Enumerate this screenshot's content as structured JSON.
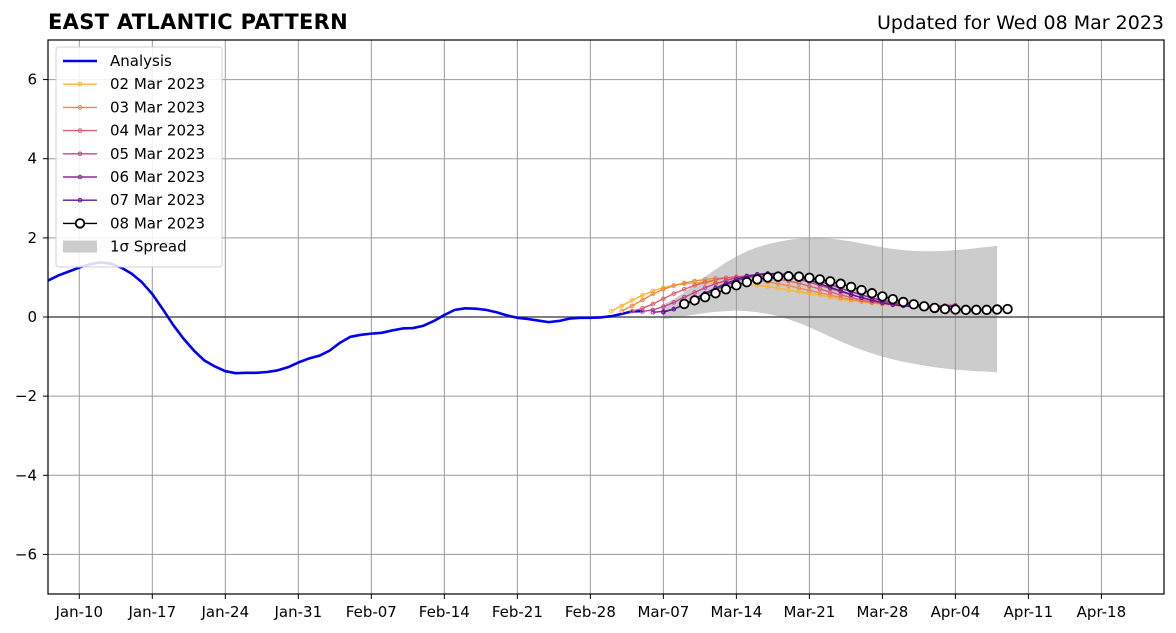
{
  "header": {
    "title": "EAST ATLANTIC PATTERN",
    "updated": "Updated for Wed 08 Mar 2023"
  },
  "chart_data": {
    "type": "line",
    "title": "EAST ATLANTIC PATTERN",
    "subtitle": "Updated for Wed 08 Mar 2023",
    "xlabel": "",
    "ylabel": "",
    "ylim": [
      -7,
      7
    ],
    "xlim": [
      "2023-01-07",
      "2023-04-24"
    ],
    "yticks": [
      -6,
      -4,
      -2,
      0,
      2,
      4,
      6
    ],
    "ytick_labels": [
      "−6",
      "−4",
      "−2",
      "0",
      "2",
      "4",
      "6"
    ],
    "xticks": [
      "2023-01-10",
      "2023-01-17",
      "2023-01-24",
      "2023-01-31",
      "2023-02-07",
      "2023-02-14",
      "2023-02-21",
      "2023-02-28",
      "2023-03-07",
      "2023-03-14",
      "2023-03-21",
      "2023-03-28",
      "2023-04-04",
      "2023-04-11",
      "2023-04-18"
    ],
    "xtick_labels": [
      "Jan-10",
      "Jan-17",
      "Jan-24",
      "Jan-31",
      "Feb-07",
      "Feb-14",
      "Feb-21",
      "Feb-28",
      "Mar-07",
      "Mar-14",
      "Mar-21",
      "Mar-28",
      "Apr-04",
      "Apr-11",
      "Apr-18"
    ],
    "grid": true,
    "legend_position": "top-left",
    "series": [
      {
        "name": "Analysis",
        "color": "#0000ee",
        "style": "thick-line",
        "start": "2023-01-07",
        "values": [
          0.92,
          1.05,
          1.15,
          1.25,
          1.33,
          1.38,
          1.35,
          1.25,
          1.1,
          0.88,
          0.58,
          0.2,
          -0.2,
          -0.55,
          -0.85,
          -1.1,
          -1.25,
          -1.37,
          -1.42,
          -1.41,
          -1.41,
          -1.39,
          -1.35,
          -1.27,
          -1.15,
          -1.05,
          -0.98,
          -0.85,
          -0.65,
          -0.5,
          -0.45,
          -0.42,
          -0.4,
          -0.34,
          -0.29,
          -0.28,
          -0.22,
          -0.1,
          0.05,
          0.18,
          0.22,
          0.21,
          0.18,
          0.12,
          0.04,
          -0.02,
          -0.05,
          -0.09,
          -0.13,
          -0.1,
          -0.04,
          -0.02,
          -0.02,
          -0.01,
          0.02,
          0.08,
          0.14,
          0.15
        ]
      },
      {
        "name": "02 Mar 2023",
        "color": "#f7b731",
        "style": "thin-marker",
        "start": "2023-03-02",
        "values": [
          0.15,
          0.28,
          0.42,
          0.55,
          0.66,
          0.74,
          0.8,
          0.84,
          0.86,
          0.87,
          0.87,
          0.86,
          0.84,
          0.82,
          0.8,
          0.77,
          0.73,
          0.68,
          0.64,
          0.6,
          0.55,
          0.5,
          0.45,
          0.42,
          0.38,
          0.35,
          0.32,
          0.3,
          0.28,
          0.27,
          0.26,
          0.25,
          0.25
        ]
      },
      {
        "name": "03 Mar 2023",
        "color": "#f08a4b",
        "style": "thin-marker",
        "start": "2023-03-03",
        "values": [
          0.15,
          0.28,
          0.43,
          0.58,
          0.7,
          0.79,
          0.86,
          0.91,
          0.95,
          0.98,
          0.99,
          0.98,
          0.96,
          0.93,
          0.89,
          0.84,
          0.79,
          0.73,
          0.67,
          0.61,
          0.55,
          0.49,
          0.44,
          0.4,
          0.36,
          0.33,
          0.3,
          0.28,
          0.27,
          0.26,
          0.26,
          0.27,
          0.27
        ]
      },
      {
        "name": "04 Mar 2023",
        "color": "#e0606e",
        "style": "thin-marker",
        "start": "2023-03-04",
        "values": [
          0.15,
          0.22,
          0.33,
          0.46,
          0.59,
          0.7,
          0.8,
          0.88,
          0.94,
          0.99,
          1.02,
          1.03,
          1.02,
          1.0,
          0.96,
          0.91,
          0.85,
          0.78,
          0.71,
          0.63,
          0.56,
          0.49,
          0.43,
          0.38,
          0.34,
          0.31,
          0.29,
          0.28,
          0.28,
          0.28,
          0.29,
          0.3
        ]
      },
      {
        "name": "05 Mar 2023",
        "color": "#c0448c",
        "style": "thin-marker",
        "start": "2023-03-05",
        "values": [
          0.14,
          0.18,
          0.26,
          0.37,
          0.5,
          0.62,
          0.74,
          0.84,
          0.92,
          0.99,
          1.04,
          1.07,
          1.07,
          1.05,
          1.01,
          0.95,
          0.88,
          0.8,
          0.72,
          0.64,
          0.56,
          0.49,
          0.43,
          0.38,
          0.34,
          0.31,
          0.29,
          0.28,
          0.28,
          0.29,
          0.3
        ]
      },
      {
        "name": "06 Mar 2023",
        "color": "#9a22a0",
        "style": "thin-marker",
        "start": "2023-03-06",
        "values": [
          0.12,
          0.14,
          0.2,
          0.3,
          0.42,
          0.56,
          0.69,
          0.81,
          0.91,
          0.99,
          1.05,
          1.08,
          1.09,
          1.07,
          1.03,
          0.97,
          0.9,
          0.82,
          0.73,
          0.64,
          0.56,
          0.48,
          0.42,
          0.37,
          0.33,
          0.3,
          0.28,
          0.27,
          0.27,
          0.28
        ]
      },
      {
        "name": "07 Mar 2023",
        "color": "#5b1591",
        "style": "thin-marker",
        "start": "2023-03-07",
        "values": [
          0.12,
          0.2,
          0.32,
          0.46,
          0.6,
          0.73,
          0.85,
          0.95,
          1.03,
          1.08,
          1.1,
          1.09,
          1.06,
          1.0,
          0.93,
          0.84,
          0.75,
          0.66,
          0.57,
          0.49,
          0.42,
          0.36,
          0.31,
          0.28,
          0.26,
          0.25,
          0.25,
          0.26,
          0.27
        ]
      },
      {
        "name": "08 Mar 2023",
        "color": "#000000",
        "style": "open-circle",
        "start": "2023-03-09",
        "values": [
          0.33,
          0.42,
          0.5,
          0.6,
          0.7,
          0.8,
          0.88,
          0.95,
          1.0,
          1.02,
          1.03,
          1.02,
          0.99,
          0.95,
          0.9,
          0.84,
          0.76,
          0.68,
          0.6,
          0.52,
          0.45,
          0.38,
          0.32,
          0.27,
          0.23,
          0.2,
          0.19,
          0.18,
          0.18,
          0.18,
          0.19,
          0.2
        ]
      }
    ],
    "spread": {
      "name": "1σ Spread",
      "color": "#cccccc",
      "start": "2023-03-07",
      "upper": [
        0.32,
        0.45,
        0.62,
        0.82,
        1.02,
        1.2,
        1.38,
        1.53,
        1.66,
        1.76,
        1.84,
        1.9,
        1.95,
        1.98,
        2.0,
        2.0,
        1.98,
        1.95,
        1.91,
        1.86,
        1.81,
        1.76,
        1.72,
        1.69,
        1.67,
        1.66,
        1.66,
        1.67,
        1.69,
        1.71,
        1.74,
        1.77,
        1.8
      ],
      "lower": [
        -0.05,
        -0.02,
        0.02,
        0.06,
        0.1,
        0.13,
        0.15,
        0.16,
        0.15,
        0.12,
        0.08,
        0.02,
        -0.06,
        -0.15,
        -0.26,
        -0.38,
        -0.5,
        -0.62,
        -0.73,
        -0.83,
        -0.92,
        -1.0,
        -1.07,
        -1.13,
        -1.18,
        -1.23,
        -1.27,
        -1.3,
        -1.33,
        -1.35,
        -1.37,
        -1.38,
        -1.4
      ]
    }
  }
}
